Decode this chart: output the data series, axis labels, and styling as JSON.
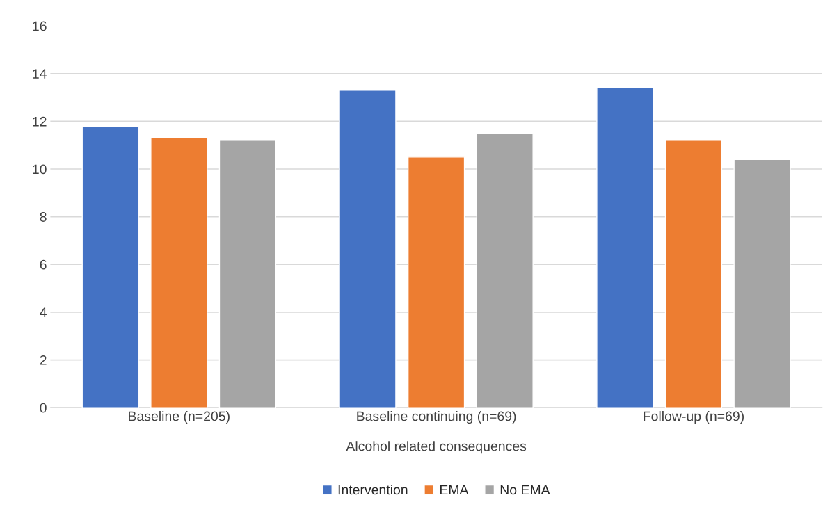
{
  "chart_data": {
    "type": "bar",
    "xlabel": "Alcohol related consequences",
    "categories": [
      "Baseline (n=205)",
      "Baseline continuing (n=69)",
      "Follow-up (n=69)"
    ],
    "series": [
      {
        "name": "Intervention",
        "color": "#4472c4",
        "values": [
          11.8,
          13.3,
          13.4
        ]
      },
      {
        "name": "EMA",
        "color": "#ed7d31",
        "values": [
          11.3,
          10.5,
          11.2
        ]
      },
      {
        "name": "No EMA",
        "color": "#a5a5a5",
        "values": [
          11.2,
          11.5,
          10.4
        ]
      }
    ],
    "ylim": [
      0,
      16
    ],
    "yticks": [
      0,
      2,
      4,
      6,
      8,
      10,
      12,
      14,
      16
    ],
    "grid": "y",
    "legend": "bottom"
  }
}
